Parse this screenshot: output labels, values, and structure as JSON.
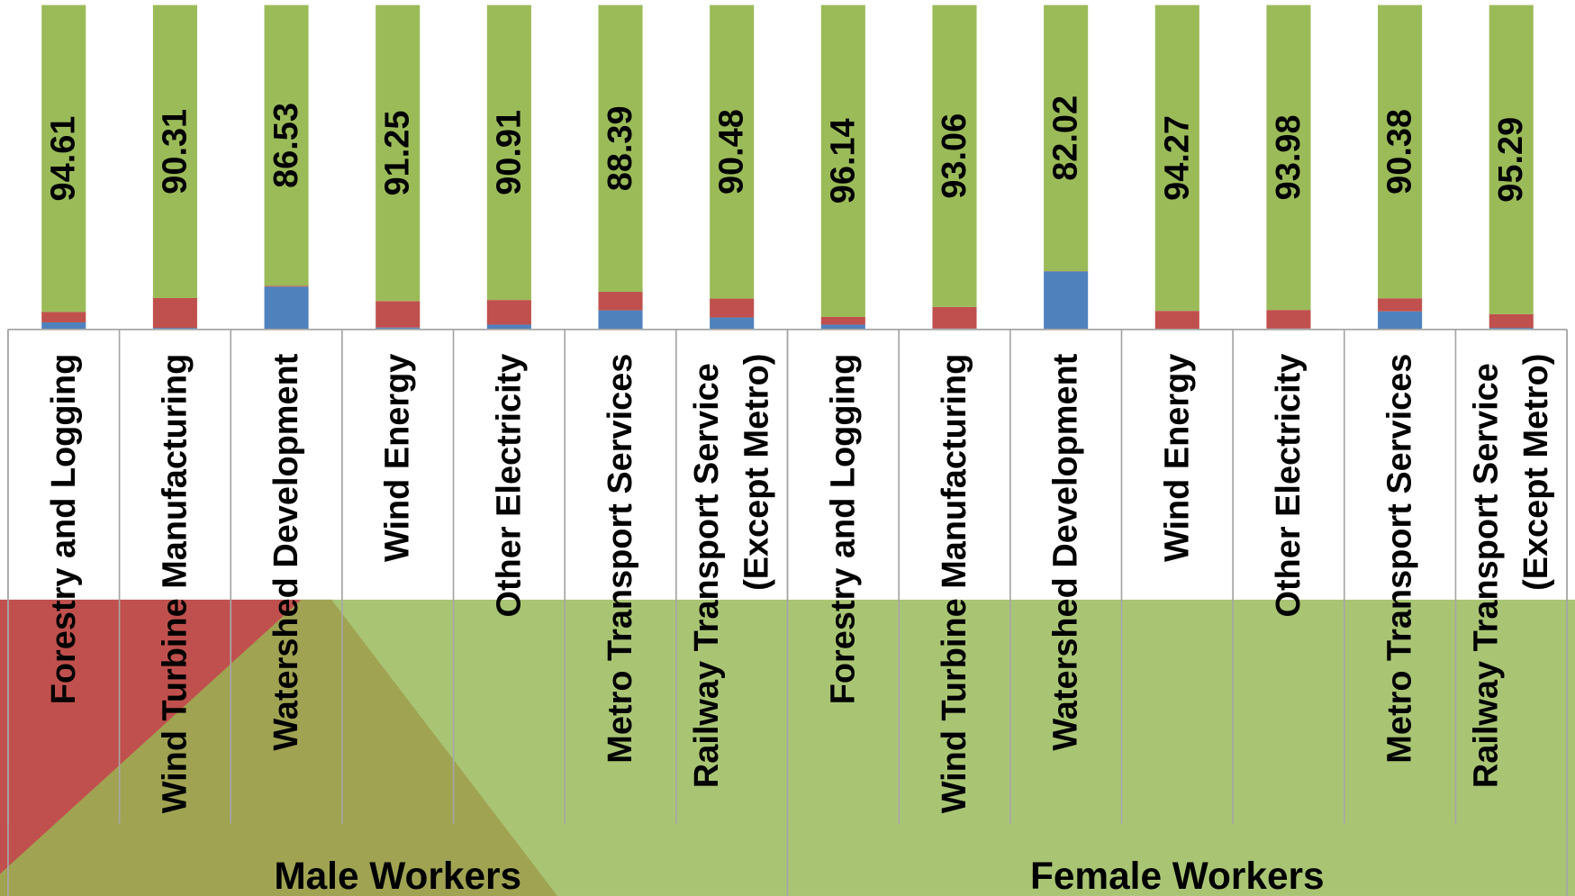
{
  "chart_data": {
    "type": "stacked_bar",
    "categories": [
      "Forestry and Logging",
      "Wind Turbine Manufacturing",
      "Watershed Development",
      "Wind Energy",
      "Other Electricity",
      "Metro Transport Services",
      "Railway Transport Service (Except Metro)",
      "Forestry and Logging",
      "Wind Turbine Manufacturing",
      "Watershed Development",
      "Wind Energy",
      "Other Electricity",
      "Metro Transport Services",
      "Railway Transport Service (Except Metro)"
    ],
    "groups": [
      "Male Workers",
      "Female Workers"
    ],
    "ylim": [
      0,
      100
    ],
    "series": [
      {
        "color": "#4f81bd",
        "values": [
          2.2,
          0.5,
          13.2,
          0.6,
          1.5,
          5.9,
          3.7,
          1.5,
          0.3,
          17.9,
          0.2,
          0.3,
          5.6,
          0.5
        ]
      },
      {
        "color": "#c0504d",
        "values": [
          3.19,
          9.19,
          0.27,
          8.15,
          7.59,
          5.71,
          5.82,
          2.36,
          6.64,
          0.08,
          5.53,
          5.72,
          4.02,
          4.21
        ]
      },
      {
        "color": "#9bbb59",
        "values": [
          94.61,
          90.31,
          86.53,
          91.25,
          90.91,
          88.39,
          90.48,
          96.14,
          93.06,
          82.02,
          94.27,
          93.98,
          90.38,
          95.29
        ],
        "labeled": true
      }
    ]
  }
}
